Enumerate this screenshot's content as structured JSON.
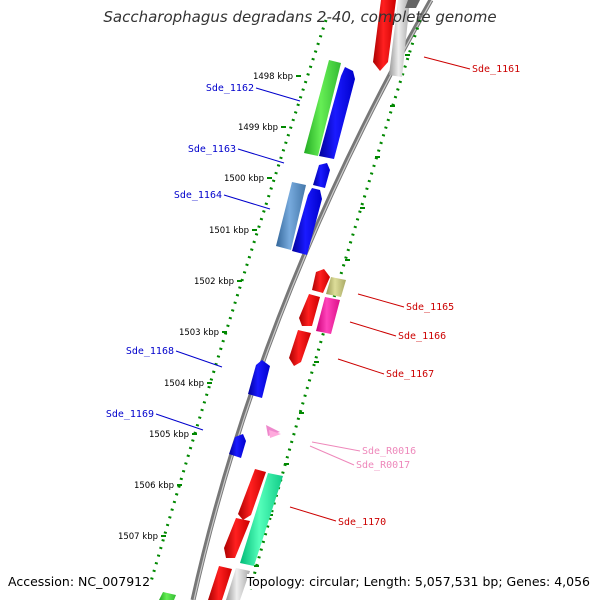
{
  "title": "Saccharophagus degradans 2-40, complete genome",
  "footer": {
    "accession": "Accession: NC_007912",
    "topology": "Topology: circular; Length: 5,057,531 bp; Genes: 4,056"
  },
  "colors": {
    "backbone": "#888888",
    "tick_dots": "#008800",
    "left_label": "#0000cc",
    "right_label": "#cc0000",
    "rna_label": "#ee88bb"
  },
  "kbp_ticks": [
    "1498 kbp",
    "1499 kbp",
    "1500 kbp",
    "1501 kbp",
    "1502 kbp",
    "1503 kbp",
    "1504 kbp",
    "1505 kbp",
    "1506 kbp",
    "1507 kbp"
  ],
  "genes_left": [
    {
      "label": "Sde_1162"
    },
    {
      "label": "Sde_1163"
    },
    {
      "label": "Sde_1164"
    },
    {
      "label": "Sde_1168"
    },
    {
      "label": "Sde_1169"
    }
  ],
  "genes_right": [
    {
      "label": "Sde_1161"
    },
    {
      "label": "Sde_1165"
    },
    {
      "label": "Sde_1166"
    },
    {
      "label": "Sde_1167"
    },
    {
      "label": "Sde_R0016"
    },
    {
      "label": "Sde_R0017"
    },
    {
      "label": "Sde_1170"
    }
  ]
}
